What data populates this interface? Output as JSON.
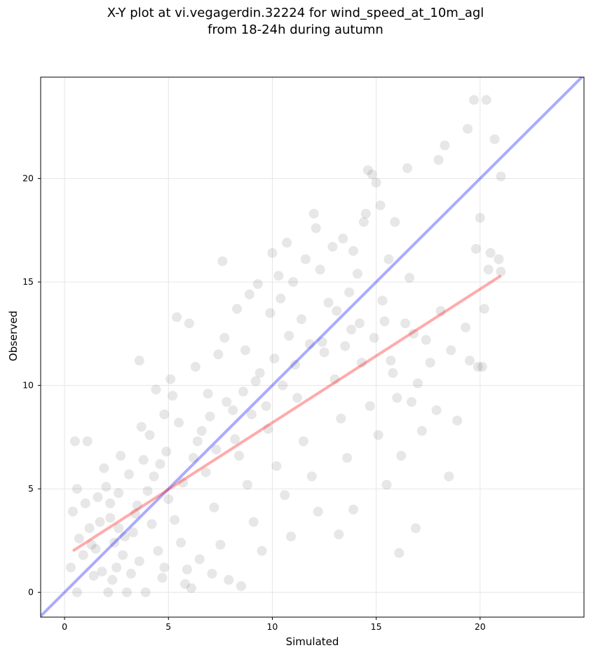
{
  "chart_data": {
    "type": "scatter",
    "title_line1": "X-Y plot at vi.vegagerdin.32224 for wind_speed_at_10m_agl",
    "title_line2": "from 18-24h during autumn",
    "xlabel": "Simulated",
    "ylabel": "Observed",
    "xlim": [
      -1.15,
      25.0
    ],
    "ylim": [
      -1.2,
      24.9
    ],
    "xticks": [
      0,
      5,
      10,
      15,
      20
    ],
    "yticks": [
      0,
      5,
      10,
      15,
      20
    ],
    "grid": true,
    "point_color": "#555555",
    "identity_line": {
      "color": "#0000ff",
      "from": [
        -1.15,
        -1.15
      ],
      "to": [
        25.0,
        25.0
      ]
    },
    "regression_line": {
      "color": "#ff0000",
      "from": [
        0.4,
        2.0
      ],
      "to": [
        21.0,
        15.3
      ]
    },
    "points": [
      [
        0.5,
        7.3
      ],
      [
        1.1,
        7.3
      ],
      [
        0.6,
        5.0
      ],
      [
        0.4,
        3.9
      ],
      [
        0.3,
        1.2
      ],
      [
        0.6,
        0.0
      ],
      [
        0.7,
        2.6
      ],
      [
        1.0,
        4.3
      ],
      [
        1.2,
        3.1
      ],
      [
        1.5,
        2.1
      ],
      [
        1.8,
        1.0
      ],
      [
        2.1,
        0.0
      ],
      [
        2.4,
        2.4
      ],
      [
        2.8,
        1.8
      ],
      [
        2.2,
        3.6
      ],
      [
        2.0,
        5.1
      ],
      [
        2.6,
        4.8
      ],
      [
        3.0,
        0.0
      ],
      [
        3.3,
        2.9
      ],
      [
        3.6,
        1.5
      ],
      [
        3.9,
        0.0
      ],
      [
        3.5,
        4.2
      ],
      [
        3.1,
        5.7
      ],
      [
        3.8,
        6.4
      ],
      [
        4.2,
        3.3
      ],
      [
        4.5,
        2.0
      ],
      [
        4.8,
        1.2
      ],
      [
        4.1,
        7.6
      ],
      [
        4.6,
        6.2
      ],
      [
        5.0,
        4.5
      ],
      [
        5.3,
        3.5
      ],
      [
        5.6,
        2.4
      ],
      [
        5.9,
        1.1
      ],
      [
        6.1,
        0.2
      ],
      [
        5.5,
        8.2
      ],
      [
        5.2,
        9.5
      ],
      [
        4.4,
        9.8
      ],
      [
        3.6,
        11.2
      ],
      [
        5.4,
        13.3
      ],
      [
        6.0,
        13.0
      ],
      [
        6.4,
        7.3
      ],
      [
        6.8,
        5.8
      ],
      [
        7.2,
        4.1
      ],
      [
        7.5,
        2.3
      ],
      [
        7.9,
        0.6
      ],
      [
        8.5,
        0.3
      ],
      [
        6.9,
        9.6
      ],
      [
        7.4,
        11.5
      ],
      [
        7.6,
        16.0
      ],
      [
        8.1,
        8.8
      ],
      [
        8.4,
        6.6
      ],
      [
        8.8,
        5.2
      ],
      [
        9.1,
        3.4
      ],
      [
        9.5,
        2.0
      ],
      [
        8.7,
        11.7
      ],
      [
        9.2,
        10.2
      ],
      [
        9.8,
        7.9
      ],
      [
        10.2,
        6.1
      ],
      [
        10.6,
        4.7
      ],
      [
        10.9,
        2.7
      ],
      [
        9.9,
        13.5
      ],
      [
        10.3,
        15.3
      ],
      [
        10.7,
        16.9
      ],
      [
        10.0,
        16.4
      ],
      [
        11.2,
        9.4
      ],
      [
        11.5,
        7.3
      ],
      [
        11.9,
        5.6
      ],
      [
        12.2,
        3.9
      ],
      [
        12.4,
        12.1
      ],
      [
        12.7,
        14.0
      ],
      [
        12.1,
        17.6
      ],
      [
        12.0,
        18.3
      ],
      [
        13.0,
        10.3
      ],
      [
        13.3,
        8.4
      ],
      [
        13.6,
        6.5
      ],
      [
        13.9,
        4.0
      ],
      [
        13.2,
        2.8
      ],
      [
        13.8,
        12.7
      ],
      [
        14.1,
        15.4
      ],
      [
        14.4,
        17.9
      ],
      [
        14.6,
        20.4
      ],
      [
        14.8,
        20.2
      ],
      [
        15.0,
        19.8
      ],
      [
        15.2,
        18.7
      ],
      [
        14.3,
        11.1
      ],
      [
        14.7,
        9.0
      ],
      [
        15.1,
        7.6
      ],
      [
        15.5,
        5.2
      ],
      [
        15.4,
        13.1
      ],
      [
        15.7,
        11.2
      ],
      [
        16.0,
        9.4
      ],
      [
        16.2,
        6.6
      ],
      [
        16.1,
        1.9
      ],
      [
        16.5,
        20.5
      ],
      [
        15.9,
        17.9
      ],
      [
        16.6,
        15.2
      ],
      [
        16.8,
        12.5
      ],
      [
        17.0,
        10.1
      ],
      [
        17.2,
        7.8
      ],
      [
        16.9,
        3.1
      ],
      [
        17.6,
        11.1
      ],
      [
        17.9,
        8.8
      ],
      [
        18.0,
        20.9
      ],
      [
        18.3,
        21.6
      ],
      [
        18.1,
        13.6
      ],
      [
        18.6,
        11.7
      ],
      [
        18.9,
        8.3
      ],
      [
        18.5,
        5.6
      ],
      [
        19.3,
        12.8
      ],
      [
        19.5,
        11.2
      ],
      [
        19.4,
        22.4
      ],
      [
        19.7,
        23.8
      ],
      [
        20.3,
        23.8
      ],
      [
        20.7,
        21.9
      ],
      [
        19.8,
        16.6
      ],
      [
        20.0,
        18.1
      ],
      [
        20.2,
        13.7
      ],
      [
        20.4,
        15.6
      ],
      [
        20.5,
        16.4
      ],
      [
        20.9,
        16.1
      ],
      [
        21.0,
        15.5
      ],
      [
        21.0,
        20.1
      ],
      [
        20.1,
        10.9
      ],
      [
        19.9,
        10.9
      ],
      [
        1.3,
        2.3
      ],
      [
        1.7,
        3.4
      ],
      [
        2.5,
        1.2
      ],
      [
        2.9,
        2.7
      ],
      [
        3.4,
        3.8
      ],
      [
        4.0,
        4.9
      ],
      [
        4.3,
        5.6
      ],
      [
        4.9,
        6.8
      ],
      [
        5.7,
        5.3
      ],
      [
        6.2,
        6.5
      ],
      [
        6.6,
        7.8
      ],
      [
        7.0,
        8.5
      ],
      [
        7.3,
        6.9
      ],
      [
        7.8,
        9.2
      ],
      [
        8.2,
        7.4
      ],
      [
        8.6,
        9.7
      ],
      [
        9.0,
        8.6
      ],
      [
        9.4,
        10.6
      ],
      [
        9.7,
        9.0
      ],
      [
        10.1,
        11.3
      ],
      [
        10.5,
        10.0
      ],
      [
        10.8,
        12.4
      ],
      [
        11.1,
        11.0
      ],
      [
        11.4,
        13.2
      ],
      [
        11.8,
        12.0
      ],
      [
        12.5,
        11.6
      ],
      [
        13.1,
        13.6
      ],
      [
        13.5,
        11.9
      ],
      [
        13.7,
        14.5
      ],
      [
        14.2,
        13.0
      ],
      [
        14.9,
        12.3
      ],
      [
        15.3,
        14.1
      ],
      [
        15.8,
        10.6
      ],
      [
        16.4,
        13.0
      ],
      [
        16.7,
        9.2
      ],
      [
        17.4,
        12.2
      ],
      [
        2.3,
        0.6
      ],
      [
        3.2,
        0.9
      ],
      [
        4.7,
        0.7
      ],
      [
        5.8,
        0.4
      ],
      [
        6.5,
        1.6
      ],
      [
        7.1,
        0.9
      ],
      [
        1.9,
        6.0
      ],
      [
        2.7,
        6.6
      ],
      [
        3.7,
        8.0
      ],
      [
        4.8,
        8.6
      ],
      [
        5.1,
        10.3
      ],
      [
        6.3,
        10.9
      ],
      [
        7.7,
        12.3
      ],
      [
        8.3,
        13.7
      ],
      [
        8.9,
        14.4
      ],
      [
        9.3,
        14.9
      ],
      [
        10.4,
        14.2
      ],
      [
        11.0,
        15.0
      ],
      [
        11.6,
        16.1
      ],
      [
        12.3,
        15.6
      ],
      [
        12.9,
        16.7
      ],
      [
        13.4,
        17.1
      ],
      [
        13.9,
        16.5
      ],
      [
        14.5,
        18.3
      ],
      [
        15.6,
        16.1
      ],
      [
        0.9,
        1.8
      ],
      [
        1.4,
        0.8
      ],
      [
        1.6,
        4.6
      ],
      [
        2.2,
        4.3
      ],
      [
        2.6,
        3.1
      ]
    ]
  }
}
